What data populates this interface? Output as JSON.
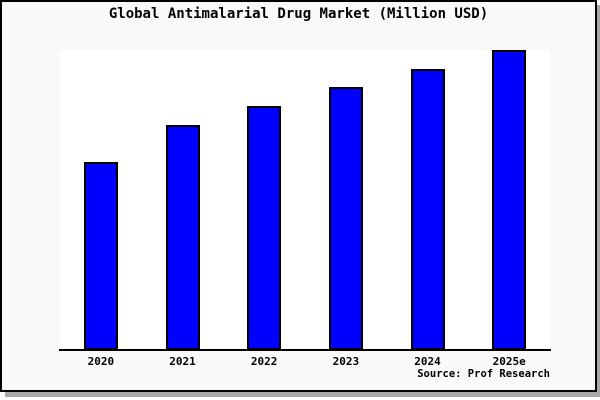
{
  "chart_data": {
    "type": "bar",
    "title": "Global Antimalarial Drug Market (Million USD)",
    "categories": [
      "2020",
      "2021",
      "2022",
      "2023",
      "2024",
      "2025e"
    ],
    "values": [
      62.7,
      75.0,
      81.3,
      87.7,
      93.7,
      100.0
    ],
    "value_note": "axis unlabeled; values estimated as percent of the 2025e bar height",
    "xlabel": "",
    "ylabel": "",
    "ylim": [
      0,
      100
    ],
    "grid": false,
    "legend": false,
    "bar_color": "#0000ff",
    "bar_border_color": "#000000"
  },
  "footer": {
    "source_text": "Source: Prof Research"
  },
  "colors": {
    "figure_background": "#f9f9f9",
    "plot_background": "#ffffff",
    "frame": "#000000",
    "shadow": "#a8a8a8",
    "text": "#000000"
  }
}
